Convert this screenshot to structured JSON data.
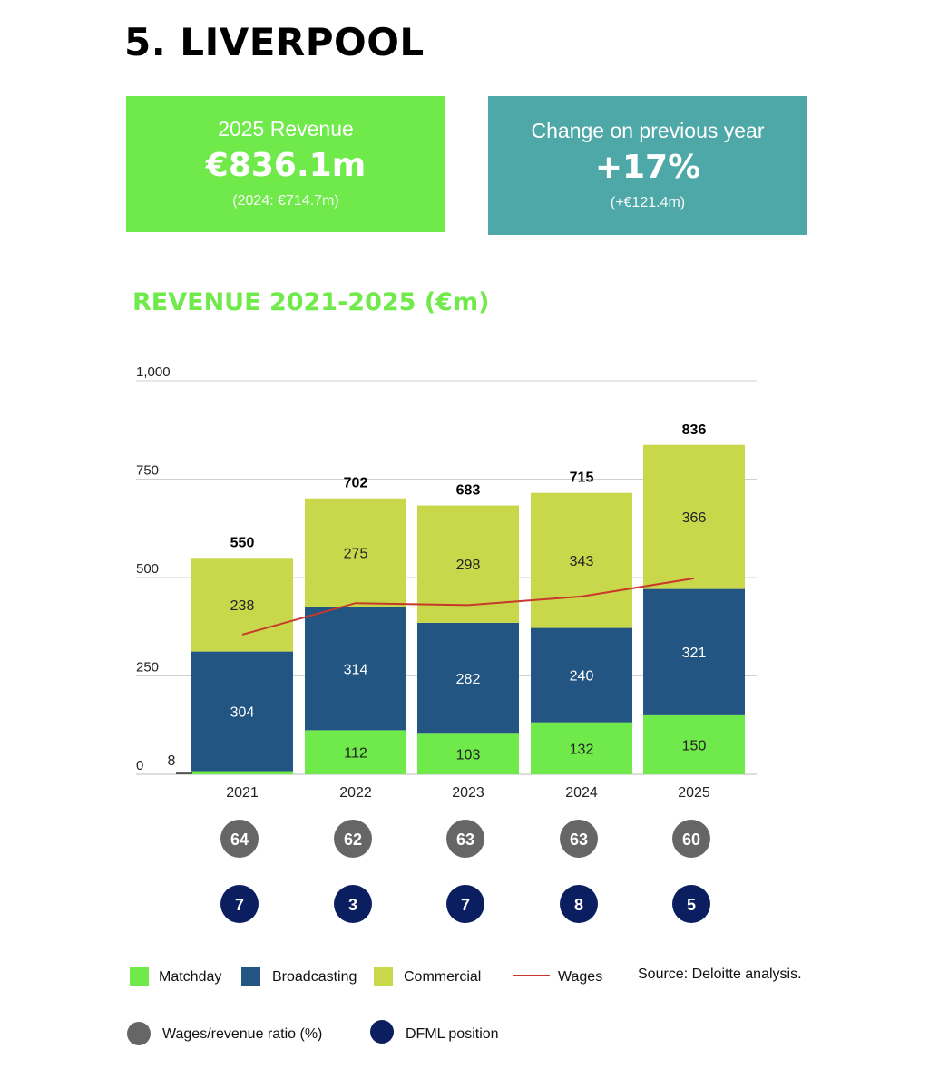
{
  "title": "5. LIVERPOOL",
  "kpis": {
    "revenue": {
      "label": "2025 Revenue",
      "value": "€836.1m",
      "sub": "(2024: €714.7m)"
    },
    "change": {
      "label": "Change on previous year",
      "value": "+17%",
      "sub": "(+€121.4m)"
    }
  },
  "chart_title": "REVENUE 2021-2025 (€m)",
  "source": "Source: Deloitte analysis.",
  "colors": {
    "matchday": "#6fea4a",
    "broadcasting": "#235582",
    "commercial": "#c8d84a",
    "wages": "#c8392b",
    "ratio_circle": "#666666",
    "position_circle": "#0b1f60"
  },
  "chart_data": {
    "type": "bar",
    "stacked": true,
    "title": "REVENUE 2021-2025 (€m)",
    "categories": [
      "2021",
      "2022",
      "2023",
      "2024",
      "2025"
    ],
    "y_ticks": [
      0,
      250,
      500,
      750,
      1000
    ],
    "y_tick_labels": [
      "0",
      "250",
      "500",
      "750",
      "1,000"
    ],
    "ylim": [
      0,
      1000
    ],
    "grid": true,
    "series": [
      {
        "name": "Matchday",
        "key": "matchday",
        "values": [
          8,
          112,
          103,
          132,
          150
        ]
      },
      {
        "name": "Broadcasting",
        "key": "broadcasting",
        "values": [
          304,
          314,
          282,
          240,
          321
        ]
      },
      {
        "name": "Commercial",
        "key": "commercial",
        "values": [
          238,
          275,
          298,
          343,
          366
        ]
      }
    ],
    "totals": [
      550,
      702,
      683,
      715,
      836
    ],
    "wages": {
      "name": "Wages",
      "values": [
        355,
        435,
        430,
        452,
        498
      ]
    },
    "wages_revenue_ratio": {
      "name": "Wages/revenue ratio (%)",
      "values": [
        64,
        62,
        63,
        63,
        60
      ]
    },
    "dfml_position": {
      "name": "DFML position",
      "values": [
        7,
        3,
        7,
        8,
        5
      ]
    },
    "legend_position": "bottom"
  }
}
